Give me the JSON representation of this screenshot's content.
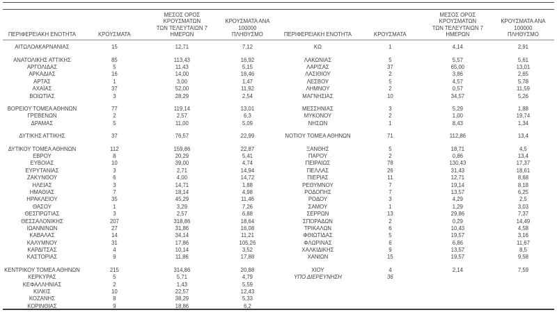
{
  "table": {
    "columns": [
      "ΠΕΡΙΦΕΡΕΙΑΚΗ ΕΝΟΤΗΤΑ",
      "ΚΡΟΥΣΜΑΤΑ",
      "ΜΕΣΟΣ ΟΡΟΣ ΚΡΟΥΣΜΑΤΩΝ\nΤΩΝ ΤΕΛΕΥΤΑΙΩΝ 7\nΗΜΕΡΩΝ",
      "ΚΡΟΥΣΜΑΤΑ ΑΝΑ 100000\nΠΛΗΘΥΣΜΟ"
    ],
    "panels": [
      {
        "groups": [
          [
            [
              "ΑΙΤΩΛΟΑΚΑΡΝΑΝΙΑΣ",
              "15",
              "12,71",
              "7,12"
            ]
          ],
          [
            [
              "ΑΝΑΤΟΛΙΚΗΣ ΑΤΤΙΚΗΣ",
              "85",
              "113,43",
              "16,92"
            ],
            [
              "ΑΡΓΟΛΙΔΑΣ",
              "5",
              "11,43",
              "5,15"
            ],
            [
              "ΑΡΚΑΔΙΑΣ",
              "16",
              "14,00",
              "18,46"
            ],
            [
              "ΑΡΤΑΣ",
              "1",
              "3,00",
              "1,47"
            ],
            [
              "ΑΧΑΪΑΣ",
              "37",
              "52,00",
              "11,92"
            ],
            [
              "ΒΟΙΩΤΙΑΣ",
              "3",
              "28,29",
              "2,54"
            ]
          ],
          [
            [
              "ΒΟΡΕΙΟΥ ΤΟΜΕΑ ΑΘΗΝΩΝ",
              "77",
              "119,14",
              "13,01"
            ],
            [
              "ΓΡΕΒΕΝΩΝ",
              "2",
              "2,57",
              "6,3"
            ],
            [
              "ΔΡΑΜΑΣ",
              "5",
              "11,00",
              "5,09"
            ]
          ],
          [
            [
              "ΔΥΤΙΚΗΣ ΑΤΤΙΚΗΣ",
              "37",
              "76,57",
              "22,99"
            ]
          ],
          [
            [
              "ΔΥΤΙΚΟΥ ΤΟΜΕΑ ΑΘΗΝΩΝ",
              "112",
              "159,86",
              "22,87"
            ],
            [
              "ΕΒΡΟΥ",
              "8",
              "20,29",
              "5,41"
            ],
            [
              "ΕΥΒΟΙΑΣ",
              "10",
              "39,00",
              "4,74"
            ],
            [
              "ΕΥΡΥΤΑΝΙΑΣ",
              "3",
              "2,71",
              "14,94"
            ],
            [
              "ΖΑΚΥΝΘΟΥ",
              "6",
              "4,00",
              "14,72"
            ],
            [
              "ΗΛΕΙΑΣ",
              "3",
              "14,71",
              "1,88"
            ],
            [
              "ΗΜΑΘΙΑΣ",
              "7",
              "18,14",
              "4,98"
            ],
            [
              "ΗΡΑΚΛΕΙΟΥ",
              "35",
              "45,29",
              "11,46"
            ],
            [
              "ΘΑΣΟΥ",
              "1",
              "3,29",
              "7,26"
            ],
            [
              "ΘΕΣΠΡΩΤΙΑΣ",
              "3",
              "2,57",
              "6,88"
            ],
            [
              "ΘΕΣΣΑΛΟΝΙΚΗΣ",
              "207",
              "318,86",
              "18,64"
            ],
            [
              "ΙΩΑΝΝΙΝΩΝ",
              "27",
              "31,86",
              "16,08"
            ],
            [
              "ΚΑΒΑΛΑΣ",
              "14",
              "34,14",
              "11,21"
            ],
            [
              "ΚΑΛΥΜΝΟΥ",
              "31",
              "17,86",
              "105,26"
            ],
            [
              "ΚΑΡΔΙΤΣΑΣ",
              "4",
              "10,14",
              "3,52"
            ],
            [
              "ΚΑΣΤΟΡΙΑΣ",
              "9",
              "11,86",
              "17,88"
            ]
          ],
          [
            [
              "ΚΕΝΤΡΙΚΟΥ ΤΟΜΕΑ ΑΘΗΝΩΝ",
              "215",
              "314,86",
              "20,88"
            ],
            [
              "ΚΕΡΚΥΡΑΣ",
              "5",
              "5,71",
              "4,79"
            ],
            [
              "ΚΕΦΑΛΛΗΝΙΑΣ",
              "2",
              "1,43",
              "5,59"
            ],
            [
              "ΚΙΛΚΙΣ",
              "10",
              "22,57",
              "12,43"
            ],
            [
              "ΚΟΖΑΝΗΣ",
              "8",
              "38,29",
              "5,33"
            ],
            [
              "ΚΟΡΙΝΘΙΑΣ",
              "9",
              "18,86",
              "6,2"
            ]
          ]
        ]
      },
      {
        "groups": [
          [
            [
              "ΚΩ",
              "1",
              "4,14",
              "2,91"
            ]
          ],
          [
            [
              "ΛΑΚΩΝΙΑΣ",
              "5",
              "5,57",
              "5,61"
            ],
            [
              "ΛΑΡΙΣΑΣ",
              "37",
              "65,00",
              "13,01"
            ],
            [
              "ΛΑΣΙΘΙΟΥ",
              "2",
              "3,86",
              "2,65"
            ],
            [
              "ΛΕΣΒΟΥ",
              "5",
              "4,57",
              "5,78"
            ],
            [
              "ΛΗΜΝΟΥ",
              "2",
              "0,57",
              "11,59"
            ],
            [
              "ΜΑΓΝΗΣΙΑΣ",
              "10",
              "34,57",
              "5,26"
            ]
          ],
          [
            [
              "ΜΕΣΣΗΝΙΑΣ",
              "3",
              "5,29",
              "1,88"
            ],
            [
              "ΜΥΚΟΝΟΥ",
              "2",
              "1,00",
              "19,74"
            ],
            [
              "ΝΗΣΩΝ",
              "1",
              "8,43",
              "1,34"
            ]
          ],
          [
            [
              "ΝΟΤΙΟΥ ΤΟΜΕΑ ΑΘΗΝΩΝ",
              "71",
              "112,86",
              "13,4"
            ]
          ],
          [
            [
              "ΞΑΝΘΗΣ",
              "5",
              "18,71",
              "4,5"
            ],
            [
              "ΠΑΡΟΥ",
              "2",
              "0,86",
              "13,4"
            ],
            [
              "ΠΕΙΡΑΙΩΣ",
              "78",
              "130,43",
              "17,37"
            ],
            [
              "ΠΕΛΛΑΣ",
              "26",
              "31,43",
              "18,61"
            ],
            [
              "ΠΙΕΡΙΑΣ",
              "11",
              "12,71",
              "8,68"
            ],
            [
              "ΡΕΘΥΜΝΟΥ",
              "7",
              "19,14",
              "8,18"
            ],
            [
              "ΡΟΔΟΠΗΣ",
              "7",
              "13,57",
              "6,25"
            ],
            [
              "ΡΟΔΟΥ",
              "3",
              "4,29",
              "2,5"
            ],
            [
              "ΣΑΜΟΥ",
              "1",
              "1,29",
              "3,03"
            ],
            [
              "ΣΕΡΡΩΝ",
              "13",
              "29,86",
              "7,37"
            ],
            [
              "ΣΠΟΡΑΔΩΝ",
              "2",
              "0,29",
              "14,49"
            ],
            [
              "ΤΡΙΚΑΛΩΝ",
              "6",
              "10,43",
              "4,58"
            ],
            [
              "ΦΘΙΩΤΙΔΑΣ",
              "5",
              "19,57",
              "3,16"
            ],
            [
              "ΦΛΩΡΙΝΑΣ",
              "6",
              "6,86",
              "11,67"
            ],
            [
              "ΧΑΛΚΙΔΙΚΗΣ",
              "9",
              "13,57",
              "8,5"
            ],
            [
              "ΧΑΝΙΩΝ",
              "15",
              "19,57",
              "9,58"
            ]
          ],
          [
            [
              "ΧΙΟΥ",
              "4",
              "2,14",
              "7,59"
            ],
            [
              "ΥΠΟ ΔΙΕΡΕΥΝΗΣΗ",
              "36",
              "",
              "",
              "italic"
            ]
          ]
        ]
      }
    ]
  },
  "colors": {
    "text": "#3f3f3f",
    "rule_dark": "#4a4a4a",
    "rule_light": "#8c8c8c",
    "background": "#ffffff"
  }
}
